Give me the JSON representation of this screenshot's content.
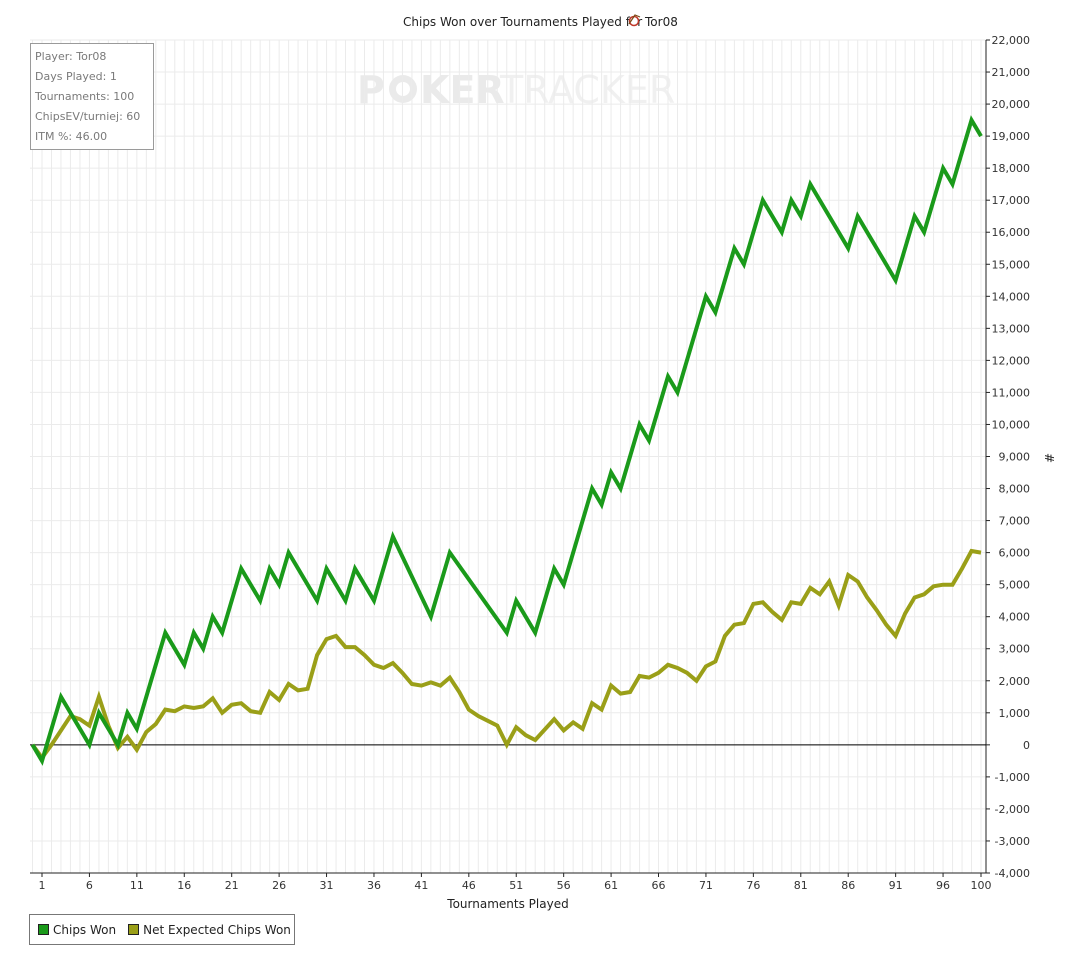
{
  "chart_data": {
    "type": "line",
    "title": "Chips Won over Tournaments Played for",
    "player_name": "Tor08",
    "xlabel": "Tournaments Played",
    "ylabel": "#",
    "xlim": [
      0,
      100
    ],
    "ylim": [
      -4000,
      22000
    ],
    "x_ticks": [
      1,
      6,
      11,
      16,
      21,
      26,
      31,
      36,
      41,
      46,
      51,
      56,
      61,
      66,
      71,
      76,
      81,
      86,
      91,
      96,
      100
    ],
    "y_ticks": [
      -4000,
      -3000,
      -2000,
      -1000,
      0,
      1000,
      2000,
      3000,
      4000,
      5000,
      6000,
      7000,
      8000,
      9000,
      10000,
      11000,
      12000,
      13000,
      14000,
      15000,
      16000,
      17000,
      18000,
      19000,
      20000,
      21000,
      22000
    ],
    "y_tick_labels": [
      "-4,000",
      "-3,000",
      "-2,000",
      "-1,000",
      "0",
      "1,000",
      "2,000",
      "3,000",
      "4,000",
      "5,000",
      "6,000",
      "7,000",
      "8,000",
      "9,000",
      "10,000",
      "11,000",
      "12,000",
      "13,000",
      "14,000",
      "15,000",
      "16,000",
      "17,000",
      "18,000",
      "19,000",
      "20,000",
      "21,000",
      "22,000"
    ],
    "grid": true,
    "legend_position": "bottom-left",
    "series": [
      {
        "name": "Chips Won",
        "color": "#1a9a1a",
        "points": [
          [
            0,
            0
          ],
          [
            1,
            -500
          ],
          [
            3,
            1500
          ],
          [
            6,
            0
          ],
          [
            7,
            1000
          ],
          [
            9,
            0
          ],
          [
            10,
            1000
          ],
          [
            11,
            500
          ],
          [
            14,
            3500
          ],
          [
            16,
            2500
          ],
          [
            17,
            3500
          ],
          [
            18,
            3000
          ],
          [
            19,
            4000
          ],
          [
            20,
            3500
          ],
          [
            22,
            5500
          ],
          [
            24,
            4500
          ],
          [
            25,
            5500
          ],
          [
            26,
            5000
          ],
          [
            27,
            6000
          ],
          [
            30,
            4500
          ],
          [
            31,
            5500
          ],
          [
            33,
            4500
          ],
          [
            34,
            5500
          ],
          [
            36,
            4500
          ],
          [
            38,
            6500
          ],
          [
            42,
            4000
          ],
          [
            44,
            6000
          ],
          [
            50,
            3500
          ],
          [
            51,
            4500
          ],
          [
            53,
            3500
          ],
          [
            55,
            5500
          ],
          [
            56,
            5000
          ],
          [
            59,
            8000
          ],
          [
            60,
            7500
          ],
          [
            61,
            8500
          ],
          [
            62,
            8000
          ],
          [
            64,
            10000
          ],
          [
            65,
            9500
          ],
          [
            67,
            11500
          ],
          [
            68,
            11000
          ],
          [
            71,
            14000
          ],
          [
            72,
            13500
          ],
          [
            74,
            15500
          ],
          [
            75,
            15000
          ],
          [
            77,
            17000
          ],
          [
            79,
            16000
          ],
          [
            80,
            17000
          ],
          [
            81,
            16500
          ],
          [
            82,
            17500
          ],
          [
            86,
            15500
          ],
          [
            87,
            16500
          ],
          [
            91,
            14500
          ],
          [
            93,
            16500
          ],
          [
            94,
            16000
          ],
          [
            96,
            18000
          ],
          [
            97,
            17500
          ],
          [
            99,
            19500
          ],
          [
            100,
            19000
          ]
        ]
      },
      {
        "name": "Net Expected Chips Won",
        "color": "#9a9f18",
        "points": [
          [
            0,
            0
          ],
          [
            1,
            -400
          ],
          [
            2,
            0
          ],
          [
            4,
            900
          ],
          [
            5,
            800
          ],
          [
            6,
            600
          ],
          [
            7,
            1500
          ],
          [
            8,
            600
          ],
          [
            9,
            -100
          ],
          [
            10,
            250
          ],
          [
            11,
            -150
          ],
          [
            12,
            400
          ],
          [
            13,
            650
          ],
          [
            14,
            1100
          ],
          [
            15,
            1050
          ],
          [
            16,
            1200
          ],
          [
            17,
            1150
          ],
          [
            18,
            1200
          ],
          [
            19,
            1450
          ],
          [
            20,
            1000
          ],
          [
            21,
            1250
          ],
          [
            22,
            1300
          ],
          [
            23,
            1050
          ],
          [
            24,
            1000
          ],
          [
            25,
            1650
          ],
          [
            26,
            1400
          ],
          [
            27,
            1900
          ],
          [
            28,
            1700
          ],
          [
            29,
            1750
          ],
          [
            30,
            2800
          ],
          [
            31,
            3300
          ],
          [
            32,
            3400
          ],
          [
            33,
            3050
          ],
          [
            34,
            3050
          ],
          [
            35,
            2800
          ],
          [
            36,
            2500
          ],
          [
            37,
            2400
          ],
          [
            38,
            2550
          ],
          [
            39,
            2250
          ],
          [
            40,
            1900
          ],
          [
            41,
            1850
          ],
          [
            42,
            1950
          ],
          [
            43,
            1850
          ],
          [
            44,
            2100
          ],
          [
            45,
            1650
          ],
          [
            46,
            1100
          ],
          [
            47,
            900
          ],
          [
            48,
            750
          ],
          [
            49,
            600
          ],
          [
            50,
            0
          ],
          [
            51,
            550
          ],
          [
            52,
            300
          ],
          [
            53,
            150
          ],
          [
            55,
            800
          ],
          [
            56,
            450
          ],
          [
            57,
            700
          ],
          [
            58,
            500
          ],
          [
            59,
            1300
          ],
          [
            60,
            1100
          ],
          [
            61,
            1850
          ],
          [
            62,
            1600
          ],
          [
            63,
            1650
          ],
          [
            64,
            2150
          ],
          [
            65,
            2100
          ],
          [
            66,
            2250
          ],
          [
            67,
            2500
          ],
          [
            68,
            2400
          ],
          [
            69,
            2250
          ],
          [
            70,
            2000
          ],
          [
            71,
            2450
          ],
          [
            72,
            2600
          ],
          [
            73,
            3400
          ],
          [
            74,
            3750
          ],
          [
            75,
            3800
          ],
          [
            76,
            4400
          ],
          [
            77,
            4450
          ],
          [
            78,
            4150
          ],
          [
            79,
            3900
          ],
          [
            80,
            4450
          ],
          [
            81,
            4400
          ],
          [
            82,
            4900
          ],
          [
            83,
            4700
          ],
          [
            84,
            5100
          ],
          [
            85,
            4350
          ],
          [
            86,
            5300
          ],
          [
            87,
            5100
          ],
          [
            88,
            4600
          ],
          [
            89,
            4200
          ],
          [
            90,
            3750
          ],
          [
            91,
            3400
          ],
          [
            92,
            4100
          ],
          [
            93,
            4600
          ],
          [
            94,
            4700
          ],
          [
            95,
            4950
          ],
          [
            96,
            5000
          ],
          [
            97,
            5000
          ],
          [
            98,
            5500
          ],
          [
            99,
            6050
          ],
          [
            100,
            6000
          ]
        ]
      }
    ]
  },
  "info_box": {
    "player": "Player: Tor08",
    "days_played": "Days Played: 1",
    "tournaments": "Tournaments: 100",
    "chips_ev": "ChipsEV/turniej: 60",
    "itm": "ITM %: 46.00"
  },
  "watermark": {
    "part1": "P",
    "part2": "KER",
    "part3": "TRACKER"
  },
  "colors": {
    "grid": "#ebebeb",
    "axis": "#222222",
    "zero_line": "#000000"
  },
  "icons": {
    "player_icon": "site-logo-icon"
  }
}
